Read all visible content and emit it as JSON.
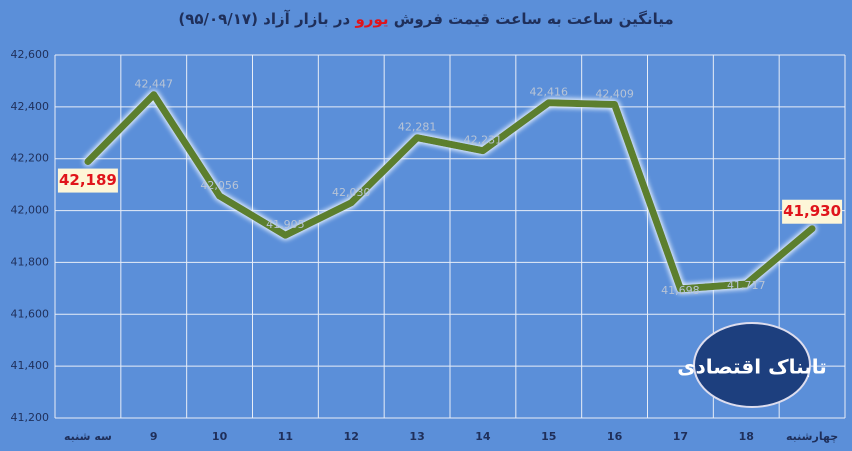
{
  "chart_data": {
    "type": "line",
    "title_parts": [
      "میانگین ساعت به ساعت قیمت فروش",
      "یورو",
      "در بازار آزاد (۹۵/۰۹/۱۷)"
    ],
    "categories": [
      "سه شنبه",
      "9",
      "10",
      "11",
      "12",
      "13",
      "14",
      "15",
      "16",
      "17",
      "18",
      "چهارشنبه"
    ],
    "series": [
      {
        "color": "#5b7f2e",
        "values": [
          42189,
          42447,
          42056,
          41905,
          42030,
          42281,
          42231,
          42416,
          42409,
          41698,
          41717,
          41930
        ],
        "value_labels": [
          "42,189",
          "42,447",
          "42,056",
          "41,905",
          "42,030",
          "42,281",
          "42,231",
          "42,416",
          "42,409",
          "41,698",
          "41,717",
          "41,930"
        ]
      }
    ],
    "ylim": [
      41200,
      42600
    ],
    "yticks": [
      {
        "value": 41200,
        "label": "41,200"
      },
      {
        "value": 41400,
        "label": "41,400"
      },
      {
        "value": 41600,
        "label": "41,600"
      },
      {
        "value": 41800,
        "label": "41,800"
      },
      {
        "value": 42000,
        "label": "42,000"
      },
      {
        "value": 42200,
        "label": "42,200"
      },
      {
        "value": 42400,
        "label": "42,400"
      },
      {
        "value": 42600,
        "label": "42,600"
      }
    ],
    "grid": true,
    "logo": "تابناک اقتصادی"
  }
}
